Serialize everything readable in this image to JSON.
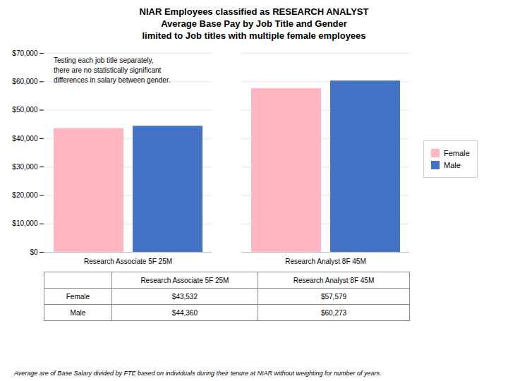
{
  "chart_data": {
    "type": "bar",
    "title": "NIAR Employees classified as RESEARCH ANALYST",
    "subtitle": "Average Base Pay by Job Title and Gender\nlimited to Job titles with multiple female employees",
    "categories": [
      "Research Associate 5F 25M",
      "Research Analyst 8F 45M"
    ],
    "series": [
      {
        "name": "Female",
        "color": "#FFB6C1",
        "values": [
          43532,
          57579
        ],
        "value_labels": [
          "$43,532",
          "$57,579"
        ]
      },
      {
        "name": "Male",
        "color": "#4472C4",
        "values": [
          44360,
          60273
        ],
        "value_labels": [
          "$44,360",
          "$60,273"
        ]
      }
    ],
    "ylim": [
      0,
      70000
    ],
    "yticks": [
      {
        "value": 0,
        "label": "$0"
      },
      {
        "value": 10000,
        "label": "$10,000"
      },
      {
        "value": 20000,
        "label": "$20,000"
      },
      {
        "value": 30000,
        "label": "$30,000"
      },
      {
        "value": 40000,
        "label": "$40,000"
      },
      {
        "value": 50000,
        "label": "$50,000"
      },
      {
        "value": 60000,
        "label": "$60,000"
      },
      {
        "value": 70000,
        "label": "$70,000"
      }
    ],
    "grid": true,
    "legend": "right",
    "annotation": "Testing each job title separately,\nthere are no statistically significant\ndifferences in salary between gender.",
    "caption": "Average are of Base Salary divided by FTE based on individuals during their tenure at NIAR  without weighting for number of years."
  }
}
